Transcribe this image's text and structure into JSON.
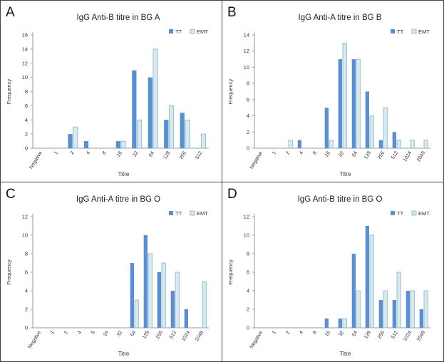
{
  "figure": {
    "panels": [
      {
        "letter": "A"
      },
      {
        "letter": "B"
      },
      {
        "letter": "C"
      },
      {
        "letter": "D"
      }
    ]
  },
  "colors": {
    "tt": "#5b8fd0",
    "emt_fill": "#d6eaf0",
    "emt_stroke": "#8aaec4",
    "axis": "#9a9a9a",
    "text": "#333333"
  },
  "chart_data": [
    {
      "type": "bar",
      "title": "IgG Anti-B titre in BG A",
      "xlabel": "Titre",
      "ylabel": "Frequency",
      "ylim": [
        0,
        16
      ],
      "yticks": [
        "0",
        "2",
        "4",
        "6",
        "8",
        "10",
        "12",
        "14",
        "16"
      ],
      "categories": [
        "Negative",
        "1",
        "2",
        "4",
        "8",
        "16",
        "32",
        "64",
        "128",
        "256",
        "512"
      ],
      "series": [
        {
          "name": "TT",
          "values": [
            0,
            0,
            2,
            1,
            0,
            1,
            11,
            10,
            4,
            5,
            0
          ]
        },
        {
          "name": "EMT",
          "values": [
            0,
            0,
            3,
            0,
            0,
            1,
            4,
            14,
            6,
            4,
            2
          ]
        }
      ],
      "legend": "top-right"
    },
    {
      "type": "bar",
      "title": "IgG Anti-A titre in BG B",
      "xlabel": "Titre",
      "ylabel": "Frequency",
      "ylim": [
        0,
        14
      ],
      "yticks": [
        "0",
        "2",
        "4",
        "6",
        "8",
        "10",
        "12",
        "14"
      ],
      "categories": [
        "Negative",
        "1",
        "2",
        "4",
        "8",
        "16",
        "32",
        "64",
        "128",
        "256",
        "512",
        "1024",
        "2048"
      ],
      "series": [
        {
          "name": "TT",
          "values": [
            0,
            0,
            0,
            1,
            0,
            5,
            11,
            11,
            7,
            1,
            2,
            0,
            0
          ]
        },
        {
          "name": "EMT",
          "values": [
            0,
            0,
            1,
            0,
            0,
            1,
            13,
            11,
            4,
            5,
            1,
            1,
            1
          ]
        }
      ],
      "legend": "top-right"
    },
    {
      "type": "bar",
      "title": "IgG Anti-A titre in BG O",
      "xlabel": "Titre",
      "ylabel": "Frequency",
      "ylim": [
        0,
        12
      ],
      "yticks": [
        "0",
        "2",
        "4",
        "6",
        "8",
        "10",
        "12"
      ],
      "categories": [
        "Negative",
        "1",
        "2",
        "4",
        "8",
        "16",
        "32",
        "64",
        "128",
        "256",
        "512",
        "1024",
        "2048"
      ],
      "series": [
        {
          "name": "TT",
          "values": [
            0,
            0,
            0,
            0,
            0,
            0,
            0,
            7,
            10,
            6,
            4,
            2,
            0
          ]
        },
        {
          "name": "EMT",
          "values": [
            0,
            0,
            0,
            0,
            0,
            0,
            0,
            3,
            8,
            7,
            6,
            0,
            5
          ]
        }
      ],
      "legend": "top-right"
    },
    {
      "type": "bar",
      "title": "IgG Anti-B titre in BG O",
      "xlabel": "Titre",
      "ylabel": "Frequency",
      "ylim": [
        0,
        12
      ],
      "yticks": [
        "0",
        "2",
        "4",
        "6",
        "8",
        "10",
        "12"
      ],
      "categories": [
        "Negative",
        "1",
        "2",
        "4",
        "8",
        "16",
        "32",
        "64",
        "128",
        "256",
        "512",
        "1024",
        "2048"
      ],
      "series": [
        {
          "name": "TT",
          "values": [
            0,
            0,
            0,
            0,
            0,
            1,
            1,
            8,
            11,
            3,
            3,
            4,
            2
          ]
        },
        {
          "name": "EMT",
          "values": [
            0,
            0,
            0,
            0,
            0,
            0,
            1,
            4,
            10,
            4,
            6,
            4,
            4
          ]
        }
      ],
      "legend": "top-right"
    }
  ]
}
